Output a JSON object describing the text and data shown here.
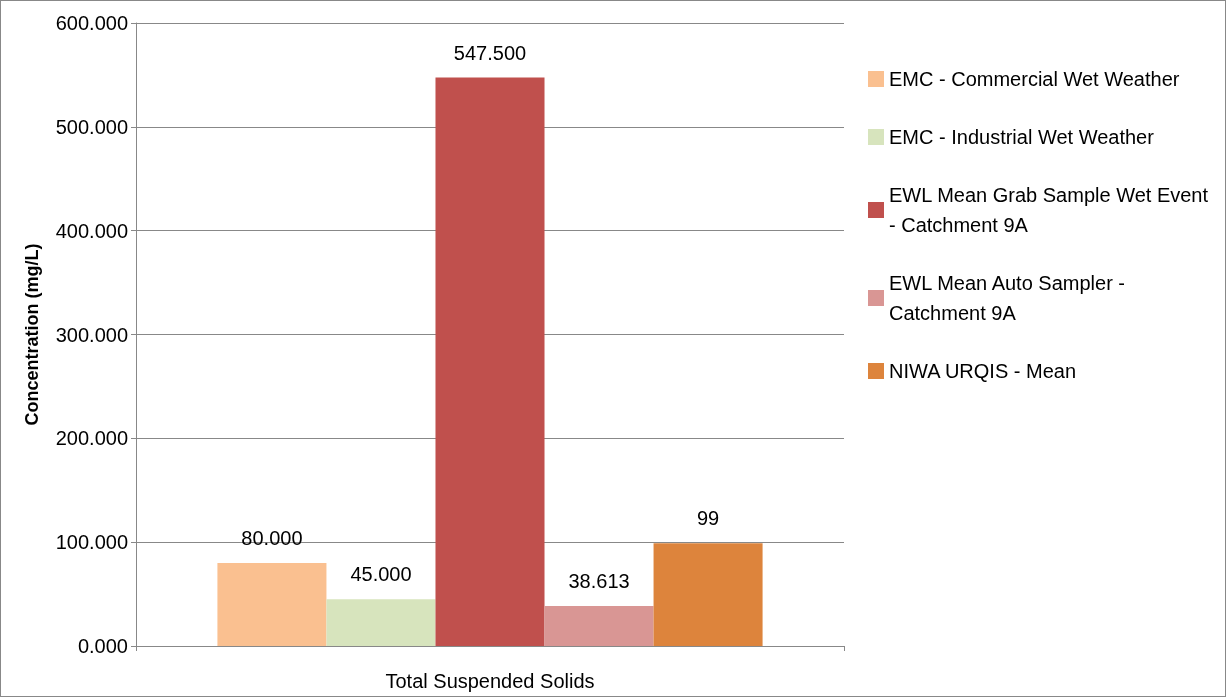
{
  "chart_data": {
    "type": "bar",
    "xlabel": "Total Suspended Solids",
    "ylabel": "Concentration (mg/L)",
    "categories": [
      null
    ],
    "series": [
      {
        "name": "EMC - Commercial Wet Weather",
        "color": "#fac090",
        "values": [
          80
        ],
        "value_labels": [
          "80.000"
        ]
      },
      {
        "name": "EMC - Industrial Wet Weather",
        "color": "#d7e4bd",
        "values": [
          45
        ],
        "value_labels": [
          "45.000"
        ]
      },
      {
        "name": "EWL Mean Grab Sample Wet Event - Catchment 9A",
        "color": "#c0504d",
        "values": [
          547.5
        ],
        "value_labels": [
          "547.500"
        ]
      },
      {
        "name": "EWL Mean Auto Sampler - Catchment 9A",
        "color": "#d99694",
        "values": [
          38.613
        ],
        "value_labels": [
          "38.613"
        ]
      },
      {
        "name": "NIWA URQIS - Mean",
        "color": "#dd843c",
        "values": [
          99
        ],
        "value_labels": [
          "99"
        ]
      }
    ],
    "ylim": [
      0,
      600
    ],
    "yticks": [
      {
        "value": 0,
        "label": "0.000"
      },
      {
        "value": 100,
        "label": "100.000"
      },
      {
        "value": 200,
        "label": "200.000"
      },
      {
        "value": 300,
        "label": "300.000"
      },
      {
        "value": 400,
        "label": "400.000"
      },
      {
        "value": 500,
        "label": "500.000"
      },
      {
        "value": 600,
        "label": "600.000"
      }
    ],
    "grid": "y",
    "legend": "right"
  }
}
